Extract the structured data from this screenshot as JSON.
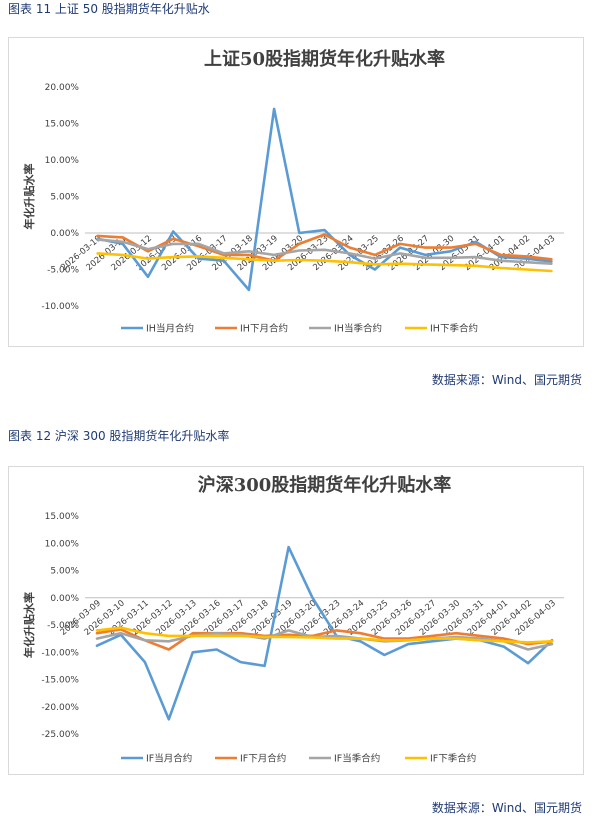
{
  "charts": [
    {
      "caption": "图表 11 上证 50 股指期货年化升贴水",
      "source": "数据来源：Wind、国元期货",
      "chart_data": {
        "type": "line",
        "title": "上证50股指期货年化升贴水率",
        "xlabel": "",
        "ylabel": "年化升贴水率",
        "ylim": [
          -10,
          20
        ],
        "yticks": [
          "20.00%",
          "15.00%",
          "10.00%",
          "5.00%",
          "0.00%",
          "-5.00%",
          "-10.00%"
        ],
        "ytick_values": [
          20,
          15,
          10,
          5,
          0,
          -5,
          -10
        ],
        "categories": [
          "2026-03-10",
          "2026-03-11",
          "2026-03-12",
          "2026-03-13",
          "2026-03-16",
          "2026-03-17",
          "2026-03-18",
          "2026-03-19",
          "2026-03-20",
          "2026-03-23",
          "2026-03-24",
          "2026-03-25",
          "2026-03-26",
          "2026-03-27",
          "2026-03-30",
          "2026-03-31",
          "2026-04-01",
          "2026-04-02",
          "2026-04-03"
        ],
        "series": [
          {
            "name": "IH当月合约",
            "color": "#5b9bd5",
            "values": [
              -0.8,
              -1.5,
              -6.0,
              0.2,
              -3.5,
              -3.8,
              -7.8,
              17.0,
              0.0,
              0.4,
              -3.0,
              -5.0,
              -2.0,
              -3.0,
              -2.5,
              -1.2,
              -3.3,
              -3.5,
              -3.9
            ]
          },
          {
            "name": "IH下月合约",
            "color": "#ed7d31",
            "values": [
              -0.4,
              -0.6,
              -2.5,
              -0.8,
              -1.8,
              -3.0,
              -3.0,
              -3.8,
              -1.5,
              -0.2,
              -2.0,
              -3.0,
              -1.5,
              -2.0,
              -2.0,
              -1.5,
              -3.0,
              -3.2,
              -3.6
            ]
          },
          {
            "name": "IH当季合约",
            "color": "#a5a5a5",
            "values": [
              -0.9,
              -1.2,
              -2.2,
              -1.5,
              -1.5,
              -2.8,
              -2.5,
              -3.0,
              -2.4,
              -2.3,
              -2.8,
              -3.5,
              -2.8,
              -3.4,
              -3.4,
              -3.3,
              -3.8,
              -4.0,
              -4.2
            ]
          },
          {
            "name": "IH下季合约",
            "color": "#ffc000",
            "values": [
              -2.8,
              -3.0,
              -3.5,
              -3.3,
              -3.2,
              -3.4,
              -3.6,
              -3.8,
              -3.7,
              -3.8,
              -4.0,
              -4.3,
              -4.2,
              -4.3,
              -4.4,
              -4.5,
              -4.8,
              -5.0,
              -5.2
            ]
          }
        ]
      }
    },
    {
      "caption": "图表 12 沪深 300 股指期货年化升贴水率",
      "source": "数据来源：Wind、国元期货",
      "chart_data": {
        "type": "line",
        "title": "沪深300股指期货年化升贴水率",
        "xlabel": "",
        "ylabel": "年化升贴水率",
        "ylim": [
          -25,
          15
        ],
        "yticks": [
          "15.00%",
          "10.00%",
          "5.00%",
          "0.00%",
          "-5.00%",
          "-10.00%",
          "-15.00%",
          "-20.00%",
          "-25.00%"
        ],
        "ytick_values": [
          15,
          10,
          5,
          0,
          -5,
          -10,
          -15,
          -20,
          -25
        ],
        "categories": [
          "2026-03-09",
          "2026-03-10",
          "2026-03-11",
          "2026-03-12",
          "2026-03-13",
          "2026-03-16",
          "2026-03-17",
          "2026-03-18",
          "2026-03-19",
          "2026-03-20",
          "2026-03-23",
          "2026-03-24",
          "2026-03-25",
          "2026-03-26",
          "2026-03-27",
          "2026-03-30",
          "2026-03-31",
          "2026-04-01",
          "2026-04-02",
          "2026-04-03"
        ],
        "series": [
          {
            "name": "IF当月合约",
            "color": "#5b9bd5",
            "values": [
              -8.8,
              -6.8,
              -11.8,
              -22.3,
              -10.0,
              -9.5,
              -11.8,
              -12.5,
              9.3,
              0.0,
              -7.0,
              -8.0,
              -10.5,
              -8.5,
              -8.0,
              -7.5,
              -7.8,
              -9.0,
              -12.0,
              -7.8
            ]
          },
          {
            "name": "IF下月合约",
            "color": "#ed7d31",
            "values": [
              -6.5,
              -5.8,
              -7.8,
              -9.5,
              -6.5,
              -6.5,
              -6.5,
              -7.0,
              -6.8,
              -7.0,
              -6.0,
              -6.5,
              -7.5,
              -7.5,
              -7.0,
              -6.5,
              -7.0,
              -7.5,
              -8.5,
              -8.0
            ]
          },
          {
            "name": "IF当季合约",
            "color": "#a5a5a5",
            "values": [
              -7.5,
              -6.5,
              -7.8,
              -8.0,
              -7.0,
              -6.5,
              -6.8,
              -7.5,
              -6.0,
              -7.2,
              -7.0,
              -7.5,
              -8.0,
              -7.8,
              -7.5,
              -7.2,
              -7.5,
              -8.0,
              -9.5,
              -8.5
            ]
          },
          {
            "name": "IF下季合约",
            "color": "#ffc000",
            "values": [
              -6.0,
              -5.5,
              -6.5,
              -7.0,
              -7.0,
              -7.0,
              -7.0,
              -7.2,
              -7.2,
              -7.3,
              -7.5,
              -7.5,
              -7.8,
              -7.8,
              -7.5,
              -7.5,
              -7.8,
              -8.0,
              -8.2,
              -8.0
            ]
          }
        ]
      }
    }
  ]
}
